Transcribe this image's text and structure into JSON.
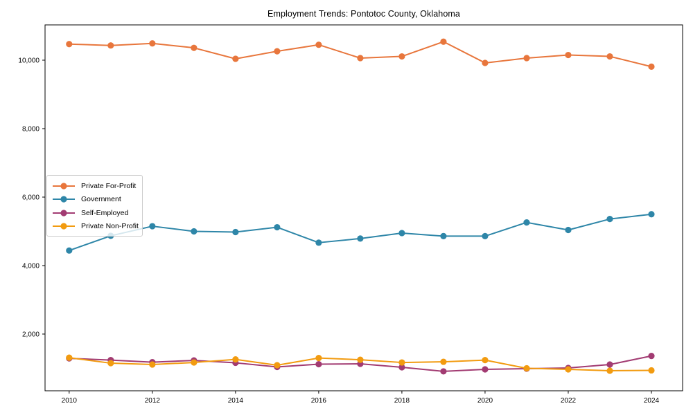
{
  "chart_data": {
    "type": "line",
    "title": "Employment Trends: Pontotoc County, Oklahoma",
    "x": [
      2010,
      2011,
      2012,
      2013,
      2014,
      2015,
      2016,
      2017,
      2018,
      2019,
      2020,
      2021,
      2022,
      2023,
      2024
    ],
    "series": [
      {
        "name": "Private For-Profit",
        "color": "#E8763C",
        "values": [
          10470,
          10430,
          10490,
          10360,
          10040,
          10260,
          10450,
          10060,
          10110,
          10540,
          9920,
          10060,
          10150,
          10110,
          9810
        ]
      },
      {
        "name": "Government",
        "color": "#2E86A8",
        "values": [
          4440,
          4870,
          5150,
          5000,
          4980,
          5120,
          4670,
          4790,
          4950,
          4860,
          4860,
          5260,
          5040,
          5360,
          5500
        ]
      },
      {
        "name": "Self-Employed",
        "color": "#A23B72",
        "values": [
          1290,
          1240,
          1180,
          1230,
          1160,
          1040,
          1120,
          1130,
          1030,
          910,
          970,
          990,
          1010,
          1110,
          1360
        ]
      },
      {
        "name": "Private Non-Profit",
        "color": "#F29B10",
        "values": [
          1310,
          1150,
          1110,
          1170,
          1260,
          1090,
          1300,
          1250,
          1170,
          1190,
          1240,
          1000,
          970,
          930,
          940
        ]
      }
    ],
    "xticks": {
      "values": [
        2010,
        2012,
        2014,
        2016,
        2018,
        2020,
        2022,
        2024
      ],
      "labels": [
        "2010",
        "2012",
        "2014",
        "2016",
        "2018",
        "2020",
        "2022",
        "2024"
      ]
    },
    "yticks": {
      "values": [
        2000,
        4000,
        6000,
        8000,
        10000
      ],
      "labels": [
        "2,000",
        "4,000",
        "6,000",
        "8,000",
        "10,000"
      ]
    },
    "xlim": [
      2009.42,
      2024.75
    ],
    "ylim": [
      343,
      11030
    ],
    "grid": false,
    "legend_position": "center-left",
    "marker": "circle",
    "line_width": 2,
    "marker_radius": 4.6
  }
}
